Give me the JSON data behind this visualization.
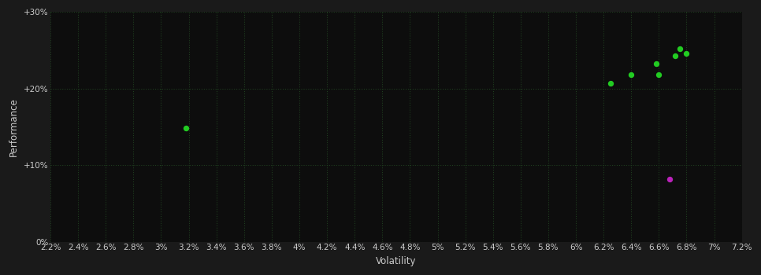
{
  "background_color": "#1a1a1a",
  "plot_bg_color": "#0d0d0d",
  "grid_color": "#1f3d1f",
  "xlabel": "Volatility",
  "ylabel": "Performance",
  "xlim": [
    0.022,
    0.072
  ],
  "ylim": [
    0.0,
    0.3
  ],
  "xticks": [
    0.022,
    0.024,
    0.026,
    0.028,
    0.03,
    0.032,
    0.034,
    0.036,
    0.038,
    0.04,
    0.042,
    0.044,
    0.046,
    0.048,
    0.05,
    0.052,
    0.054,
    0.056,
    0.058,
    0.06,
    0.062,
    0.064,
    0.066,
    0.068,
    0.07,
    0.072
  ],
  "yticks": [
    0.0,
    0.1,
    0.2,
    0.3
  ],
  "ytick_labels": [
    "0%",
    "+10%",
    "+20%",
    "+30%"
  ],
  "xtick_labels": [
    "2.2%",
    "2.4%",
    "2.6%",
    "2.8%",
    "3%",
    "3.2%",
    "3.4%",
    "3.6%",
    "3.8%",
    "4%",
    "4.2%",
    "4.4%",
    "4.6%",
    "4.8%",
    "5%",
    "5.2%",
    "5.4%",
    "5.6%",
    "5.8%",
    "6%",
    "6.2%",
    "6.4%",
    "6.6%",
    "6.8%",
    "7%",
    "7.2%"
  ],
  "green_points": [
    [
      0.0318,
      0.148
    ],
    [
      0.0625,
      0.207
    ],
    [
      0.064,
      0.218
    ],
    [
      0.066,
      0.218
    ],
    [
      0.0658,
      0.232
    ],
    [
      0.0672,
      0.243
    ],
    [
      0.0675,
      0.252
    ],
    [
      0.068,
      0.246
    ]
  ],
  "magenta_points": [
    [
      0.0668,
      0.082
    ]
  ],
  "green_color": "#22cc22",
  "magenta_color": "#bb22bb",
  "marker_size": 28,
  "tick_color": "#cccccc",
  "tick_fontsize": 7.5,
  "label_fontsize": 8.5,
  "label_color": "#cccccc"
}
